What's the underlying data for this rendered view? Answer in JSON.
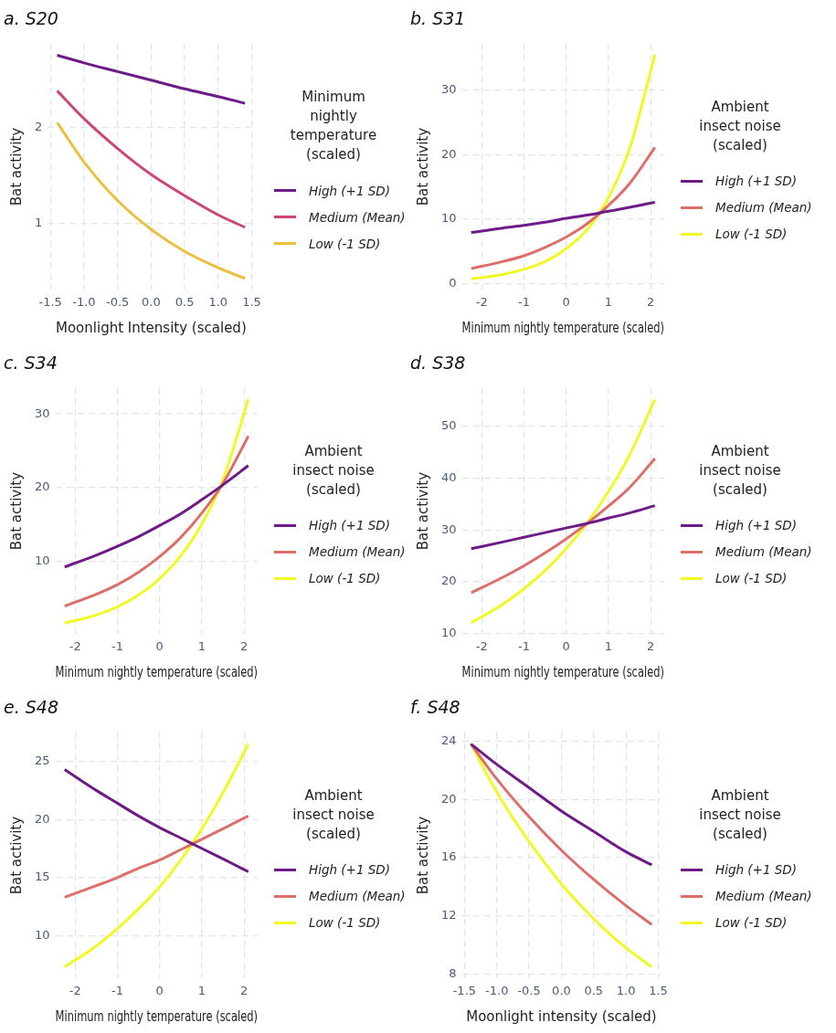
{
  "chart_data": [
    {
      "type": "line",
      "title": "a. S20",
      "xlabel": "Moonlight Intensity (scaled)",
      "ylabel": "Bat activity",
      "legend_title": "Minimum nightly temperature (scaled)",
      "legend": "right",
      "grid": true,
      "marker": "none",
      "line_style": "solid",
      "x": [
        -1.4,
        -1,
        -0.5,
        0,
        0.5,
        1,
        1.4
      ],
      "xlim": [
        -1.54,
        1.54
      ],
      "xticks": [
        -1.5,
        {
          "value": -1,
          "label": "-1.0"
        },
        -0.5,
        {
          "value": 0,
          "label": "0.0"
        },
        0.5,
        {
          "value": 1,
          "label": "1.0"
        },
        1.5
      ],
      "ylim": [
        0.31,
        2.87
      ],
      "yticks": [
        1,
        2
      ],
      "series": [
        {
          "name": "High (+1 SD)",
          "color": "#6e1a87",
          "values": [
            2.75,
            2.67,
            2.58,
            2.49,
            2.4,
            2.32,
            2.25
          ]
        },
        {
          "name": "Medium (Mean)",
          "color": "#cc4778",
          "values": [
            2.38,
            2.09,
            1.78,
            1.51,
            1.29,
            1.09,
            0.96
          ]
        },
        {
          "name": "Low (-1 SD)",
          "color": "#ebc03d",
          "values": [
            2.05,
            1.64,
            1.24,
            0.94,
            0.71,
            0.54,
            0.43
          ]
        }
      ]
    },
    {
      "type": "line",
      "title": "b. S31",
      "xlabel": "Minimum nightly temperature (scaled)",
      "ylabel": "Bat activity",
      "legend_title": "Ambient insect noise (scaled)",
      "legend": "right",
      "grid": true,
      "marker": "none",
      "line_style": "solid",
      "x": [
        -2.25,
        -1.5,
        -1,
        -0.5,
        0,
        0.5,
        1,
        1.5,
        2.1
      ],
      "xlim": [
        -2.47,
        2.32
      ],
      "xticks": [
        -2,
        -1,
        0,
        1,
        2
      ],
      "ylim": [
        -1,
        37.2
      ],
      "yticks": [
        0,
        10,
        20,
        30
      ],
      "series": [
        {
          "name": "High (+1 SD)",
          "color": "#6e1a87",
          "values": [
            7.9,
            8.6,
            9.0,
            9.5,
            10.1,
            10.6,
            11.2,
            11.8,
            12.6
          ]
        },
        {
          "name": "Medium (Mean)",
          "color": "#dd6e6a",
          "values": [
            2.3,
            3.4,
            4.3,
            5.6,
            7.2,
            9.3,
            12.1,
            15.5,
            21.1
          ]
        },
        {
          "name": "Low (-1 SD)",
          "color": "#f0f921",
          "values": [
            0.7,
            1.4,
            2.2,
            3.4,
            5.4,
            8.4,
            13.3,
            20.9,
            35.5
          ]
        }
      ]
    },
    {
      "type": "line",
      "title": "c. S34",
      "xlabel": "Minimum nightly temperature (scaled)",
      "ylabel": "Bat activity",
      "legend_title": "Ambient insect noise (scaled)",
      "legend": "right",
      "grid": true,
      "marker": "none",
      "line_style": "solid",
      "x": [
        -2.25,
        -1.5,
        -1,
        -0.5,
        0,
        0.5,
        1,
        1.5,
        2.1
      ],
      "xlim": [
        -2.47,
        2.32
      ],
      "xticks": [
        -2,
        -1,
        0,
        1,
        2
      ],
      "ylim": [
        0.2,
        33.5
      ],
      "yticks": [
        10,
        20,
        30
      ],
      "series": [
        {
          "name": "High (+1 SD)",
          "color": "#6e1a87",
          "values": [
            9.3,
            10.9,
            12.1,
            13.4,
            14.9,
            16.5,
            18.4,
            20.4,
            23
          ]
        },
        {
          "name": "Medium (Mean)",
          "color": "#dd6e6a",
          "values": [
            4,
            5.6,
            6.9,
            8.6,
            10.7,
            13.3,
            16.6,
            20.6,
            27
          ]
        },
        {
          "name": "Low (-1 SD)",
          "color": "#f0f921",
          "values": [
            1.7,
            2.8,
            3.9,
            5.5,
            7.7,
            10.8,
            15.1,
            21.1,
            32
          ]
        }
      ]
    },
    {
      "type": "line",
      "title": "d. S38",
      "xlabel": "Minimum nightly temperature (scaled)",
      "ylabel": "Bat activity",
      "legend_title": "Ambient insect noise (scaled)",
      "legend": "right",
      "grid": true,
      "marker": "none",
      "line_style": "solid",
      "x": [
        -2.25,
        -1.5,
        -1,
        -0.5,
        0,
        0.5,
        1,
        1.5,
        2.1
      ],
      "xlim": [
        -2.47,
        2.32
      ],
      "xticks": [
        -2,
        -1,
        0,
        1,
        2
      ],
      "ylim": [
        9.9,
        57.4
      ],
      "yticks": [
        10,
        20,
        30,
        40,
        50
      ],
      "series": [
        {
          "name": "High (+1 SD)",
          "color": "#6e1a87",
          "values": [
            26.4,
            27.7,
            28.6,
            29.5,
            30.4,
            31.3,
            32.3,
            33.3,
            34.7
          ]
        },
        {
          "name": "Medium (Mean)",
          "color": "#dd6e6a",
          "values": [
            17.9,
            20.9,
            23.1,
            25.6,
            28.3,
            31.3,
            34.6,
            38.2,
            43.8
          ]
        },
        {
          "name": "Low (-1 SD)",
          "color": "#f0f921",
          "values": [
            12.1,
            15.7,
            18.7,
            22.2,
            26.4,
            31.4,
            37.4,
            44.5,
            55.2
          ]
        }
      ]
    },
    {
      "type": "line",
      "title": "e. S48",
      "xlabel": "Minimum nightly temperature (scaled)",
      "ylabel": "Bat activity",
      "legend_title": "Ambient insect noise (scaled)",
      "legend": "right",
      "grid": true,
      "marker": "none",
      "line_style": "solid",
      "x": [
        -2.25,
        -1.5,
        -1,
        -0.5,
        0,
        0.5,
        1,
        1.5,
        2.1
      ],
      "xlim": [
        -2.47,
        2.32
      ],
      "xticks": [
        -2,
        -1,
        0,
        1,
        2
      ],
      "ylim": [
        6.3,
        27.5
      ],
      "yticks": [
        10,
        15,
        20,
        25
      ],
      "series": [
        {
          "name": "High (+1 SD)",
          "color": "#6e1a87",
          "values": [
            24.3,
            22.5,
            21.4,
            20.3,
            19.3,
            18.4,
            17.5,
            16.6,
            15.5
          ]
        },
        {
          "name": "Medium (Mean)",
          "color": "#dd6e6a",
          "values": [
            13.3,
            14.3,
            15,
            15.8,
            16.5,
            17.4,
            18.3,
            19.2,
            20.3
          ]
        },
        {
          "name": "Low (-1 SD)",
          "color": "#f0f921",
          "values": [
            7.3,
            9.1,
            10.6,
            12.3,
            14.2,
            16.5,
            19.2,
            22.3,
            26.5
          ]
        }
      ]
    },
    {
      "type": "line",
      "title": "f. S48",
      "xlabel": "Moonlight intensity (scaled)",
      "ylabel": "Bat activity",
      "legend_title": "Ambient insect noise (scaled)",
      "legend": "right",
      "grid": true,
      "marker": "none",
      "line_style": "solid",
      "x": [
        -1.4,
        -1,
        -0.5,
        0,
        0.5,
        1,
        1.4
      ],
      "xlim": [
        -1.54,
        1.54
      ],
      "xticks": [
        -1.5,
        {
          "value": -1,
          "label": "-1.0"
        },
        -0.5,
        {
          "value": 0,
          "label": "0.0"
        },
        0.5,
        {
          "value": 1,
          "label": "1.0"
        },
        1.5
      ],
      "ylim": [
        7.7,
        24.6
      ],
      "yticks": [
        8,
        12,
        16,
        20,
        24
      ],
      "series": [
        {
          "name": "High (+1 SD)",
          "color": "#6e1a87",
          "values": [
            23.8,
            22.4,
            20.8,
            19.2,
            17.8,
            16.4,
            15.5
          ]
        },
        {
          "name": "Medium (Mean)",
          "color": "#dd6e6a",
          "values": [
            23.8,
            21.4,
            18.8,
            16.5,
            14.5,
            12.7,
            11.4
          ]
        },
        {
          "name": "Low (-1 SD)",
          "color": "#f0f921",
          "values": [
            23.8,
            20.5,
            17.1,
            14.2,
            11.8,
            9.8,
            8.5
          ]
        }
      ]
    }
  ]
}
